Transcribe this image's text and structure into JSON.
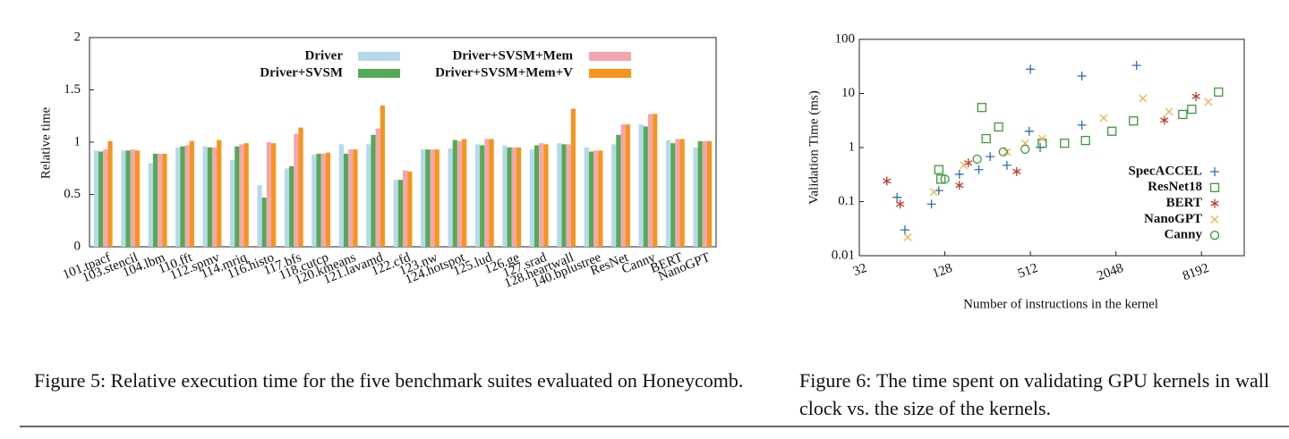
{
  "chart_data": [
    {
      "type": "bar",
      "ylabel": "Relative time",
      "caption": "Figure 5: Relative execution time for the five benchmark suites evaluated on Honeycomb.",
      "categories": [
        "101.tpacf",
        "103.stencil",
        "104.lbm",
        "110.fft",
        "112.spmv",
        "114.mriq",
        "116.histo",
        "117.bfs",
        "118.cutcp",
        "120.kmeans",
        "121.lavamd",
        "122.cfd",
        "123.nw",
        "124.hotspot",
        "125.lud",
        "126.ge",
        "127.srad",
        "128.heartwall",
        "140.bplustree",
        "ResNet",
        "Canny",
        "BERT",
        "NanoGPT"
      ],
      "series": [
        {
          "name": "Driver",
          "color": "#b6d9ea",
          "values": [
            0.92,
            0.92,
            0.8,
            0.95,
            0.96,
            0.83,
            0.59,
            0.75,
            0.88,
            0.98,
            0.98,
            0.64,
            0.93,
            0.94,
            0.98,
            0.97,
            0.93,
            0.99,
            0.95,
            0.98,
            1.17,
            1.02,
            0.95
          ]
        },
        {
          "name": "Driver+SVSM",
          "color": "#55aa55",
          "values": [
            0.91,
            0.92,
            0.89,
            0.96,
            0.95,
            0.96,
            0.47,
            0.77,
            0.89,
            0.89,
            1.07,
            0.64,
            0.93,
            1.02,
            0.97,
            0.95,
            0.97,
            0.98,
            0.91,
            1.07,
            1.15,
            0.99,
            1.01
          ]
        },
        {
          "name": "Driver+SVSM+Mem",
          "color": "#f4a6ad",
          "values": [
            0.93,
            0.93,
            0.89,
            0.97,
            0.95,
            0.98,
            1.0,
            1.08,
            0.89,
            0.93,
            1.13,
            0.73,
            0.93,
            1.01,
            1.03,
            0.95,
            0.99,
            0.98,
            0.92,
            1.17,
            1.27,
            1.03,
            1.01
          ]
        },
        {
          "name": "Driver+SVSM+Mem+V",
          "color": "#f7941d",
          "values": [
            1.01,
            0.92,
            0.89,
            1.01,
            1.02,
            0.99,
            0.99,
            1.14,
            0.9,
            0.93,
            1.35,
            0.72,
            0.93,
            1.03,
            1.03,
            0.95,
            0.98,
            1.32,
            0.92,
            1.17,
            1.27,
            1.03,
            1.01
          ]
        }
      ],
      "ylim": [
        0,
        2
      ],
      "yticks": [
        0,
        0.5,
        1,
        1.5,
        2
      ]
    },
    {
      "type": "scatter",
      "ylabel": "Validation Time (ms)",
      "xlabel": "Number of instructions in the kernel",
      "caption": "Figure 6: The time spent on validating GPU kernels in wall clock vs. the size of the kernels.",
      "log_x": true,
      "log_y": true,
      "xlim": [
        32,
        16384
      ],
      "xticks": [
        32,
        128,
        512,
        2048,
        8192
      ],
      "ylim": [
        0.01,
        100
      ],
      "yticks": [
        0.01,
        0.1,
        1,
        10,
        100
      ],
      "series": [
        {
          "name": "SpecACCEL",
          "color": "#2b6fb3",
          "marker": "plus",
          "x": [
            59,
            67,
            103,
            116,
            162,
            222,
            267,
            350,
            502,
            512,
            600,
            1180,
            1180,
            2860
          ],
          "values": [
            0.12,
            0.03,
            0.09,
            0.16,
            0.32,
            0.39,
            0.68,
            0.47,
            2,
            28,
            1,
            21,
            2.6,
            33
          ]
        },
        {
          "name": "ResNet18",
          "color": "#3a9a3a",
          "marker": "square",
          "x": [
            116,
            120,
            233,
            250,
            306,
            620,
            890,
            1250,
            1920,
            2720,
            6050,
            7000,
            10800
          ],
          "values": [
            0.39,
            0.26,
            5.5,
            1.46,
            2.4,
            1.2,
            1.2,
            1.35,
            2,
            3.1,
            4.1,
            5.1,
            10.6
          ]
        },
        {
          "name": "BERT",
          "color": "#c0392b",
          "marker": "star",
          "x": [
            50,
            62,
            162,
            187,
            410,
            4490,
            7500
          ],
          "values": [
            0.24,
            0.09,
            0.2,
            0.52,
            0.36,
            3.2,
            8.8
          ]
        },
        {
          "name": "NanoGPT",
          "color": "#f0b050",
          "marker": "cross",
          "x": [
            70,
            107,
            174,
            350,
            470,
            620,
            1680,
            3170,
            4840,
            9150
          ],
          "values": [
            0.022,
            0.15,
            0.47,
            0.83,
            1.2,
            1.46,
            3.5,
            8.1,
            4.6,
            7
          ]
        },
        {
          "name": "Canny",
          "color": "#3a9a3a",
          "marker": "circle",
          "x": [
            128,
            216,
            330,
            470
          ],
          "values": [
            0.26,
            0.61,
            0.83,
            0.93
          ]
        }
      ]
    }
  ]
}
